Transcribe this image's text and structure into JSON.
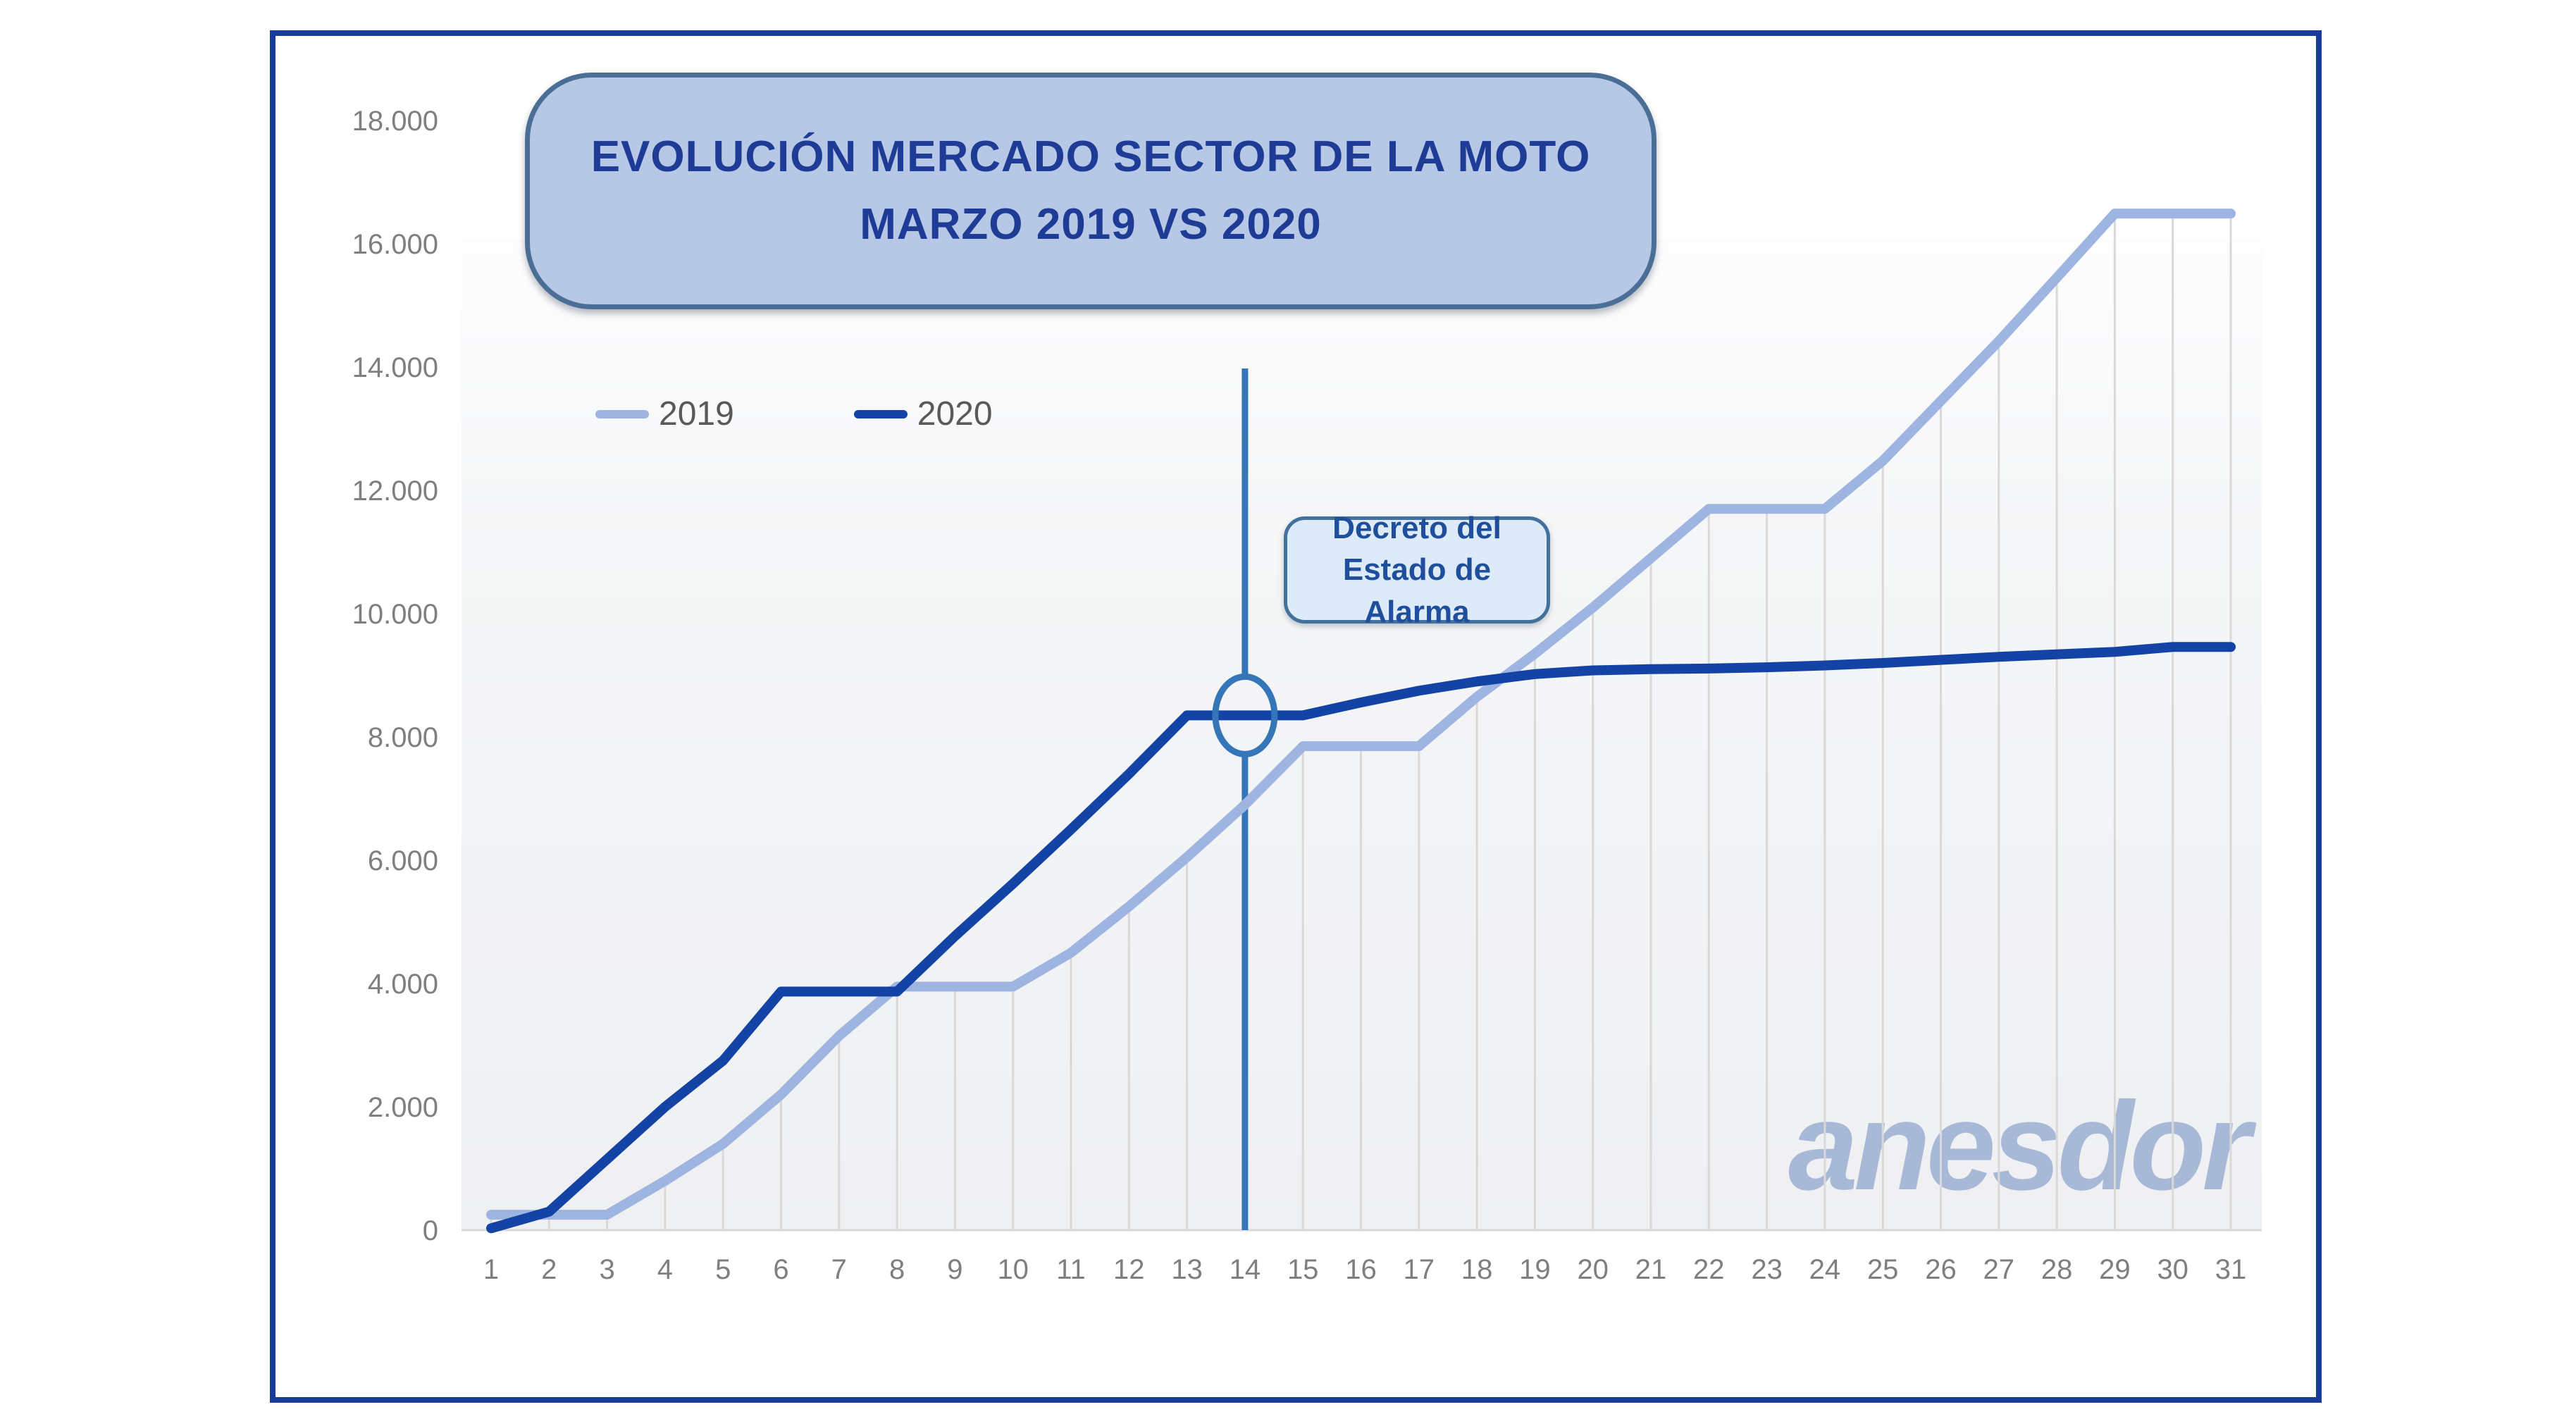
{
  "title": {
    "line1": "EVOLUCIÓN MERCADO SECTOR DE LA MOTO",
    "line2": "MARZO 2019 VS 2020"
  },
  "legend": {
    "items": [
      {
        "label": "2019",
        "color": "#9fb5e1"
      },
      {
        "label": "2020",
        "color": "#1243a5"
      }
    ]
  },
  "annotation": {
    "line1": "Decreto del",
    "line2": "Estado de Alarma"
  },
  "watermark": "anesdor",
  "colors": {
    "frame_border": "#1a3a9c",
    "series_2019": "#9fb5e1",
    "series_2020": "#1243a5",
    "event_line": "#3576b9",
    "axis_line": "#d9d9d9",
    "drop_line": "#d9d9d9",
    "tick_text": "#7f7f7f",
    "legend_text": "#595959",
    "title_text": "#1e3c96",
    "title_fill": "#b7c7e6",
    "title_border": "#4a6e96",
    "annotation_fill": "#ddeaf7",
    "annotation_border": "#41719c",
    "annotation_text": "#1f4e9c",
    "watermark_text": "#a8b9d8"
  },
  "chart_data": {
    "type": "line",
    "title": "EVOLUCIÓN MERCADO SECTOR DE LA MOTO MARZO 2019 VS 2020",
    "x": [
      1,
      2,
      3,
      4,
      5,
      6,
      7,
      8,
      9,
      10,
      11,
      12,
      13,
      14,
      15,
      16,
      17,
      18,
      19,
      20,
      21,
      22,
      23,
      24,
      25,
      26,
      27,
      28,
      29,
      30,
      31
    ],
    "x_tick_labels": [
      "1",
      "2",
      "3",
      "4",
      "5",
      "6",
      "7",
      "8",
      "9",
      "10",
      "11",
      "12",
      "13",
      "14",
      "15",
      "16",
      "17",
      "18",
      "19",
      "20",
      "21",
      "22",
      "23",
      "24",
      "25",
      "26",
      "27",
      "28",
      "29",
      "30",
      "31"
    ],
    "y_tick_values": [
      0,
      2000,
      4000,
      6000,
      8000,
      10000,
      12000,
      14000,
      16000,
      18000
    ],
    "y_tick_labels": [
      "0",
      "2.000",
      "4.000",
      "6.000",
      "8.000",
      "10.000",
      "12.000",
      "14.000",
      "16.000",
      "18.000"
    ],
    "ylim": [
      0,
      18000
    ],
    "xlabel": "",
    "ylabel": "",
    "grid": "vertical-drop-lines-only",
    "legend_position": "inside-top-left",
    "series": [
      {
        "name": "2019",
        "color": "#9fb5e1",
        "values": [
          250,
          250,
          250,
          800,
          1400,
          2200,
          3150,
          3950,
          3950,
          3950,
          4500,
          5250,
          6050,
          6900,
          7850,
          7850,
          7850,
          8650,
          9350,
          10100,
          10900,
          11700,
          11700,
          11700,
          12480,
          13450,
          14420,
          15450,
          16490,
          16490,
          16490
        ]
      },
      {
        "name": "2020",
        "color": "#1243a5",
        "values": [
          30,
          300,
          1150,
          2000,
          2750,
          3870,
          3870,
          3870,
          4770,
          5620,
          6500,
          7400,
          8350,
          8350,
          8350,
          8560,
          8750,
          8900,
          9020,
          9080,
          9100,
          9110,
          9130,
          9160,
          9200,
          9250,
          9300,
          9340,
          9380,
          9460,
          9460
        ]
      }
    ],
    "event_marker": {
      "day": 14,
      "value": 8350,
      "series": "2020",
      "label": "Decreto del Estado de Alarma"
    }
  }
}
